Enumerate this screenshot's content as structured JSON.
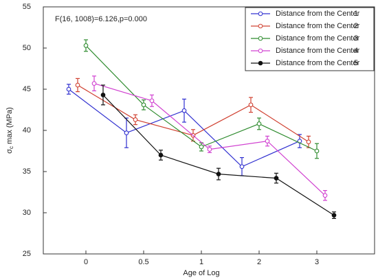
{
  "chart_data": {
    "type": "line",
    "annotation": "F(16, 1008)=6.126,p=0.000",
    "xlabel": "Age of Log",
    "ylabel": {
      "symbol": "σ",
      "subscript": "c",
      "text": " max (MPa)"
    },
    "categories": [
      "0",
      "0.5",
      "1",
      "2",
      "3"
    ],
    "ylim": [
      25,
      55
    ],
    "yticks": [
      25,
      30,
      35,
      40,
      45,
      50,
      55
    ],
    "grid": false,
    "legend": "upper right",
    "series": [
      {
        "name": "Distance from the Center",
        "label": "1",
        "color": "#3030d0",
        "values": [
          45.0,
          39.7,
          42.4,
          35.6,
          38.7
        ],
        "errors": [
          0.6,
          1.8,
          1.4,
          1.1,
          0.8
        ]
      },
      {
        "name": "Distance from the Center",
        "label": "2",
        "color": "#d04030",
        "values": [
          45.5,
          41.3,
          39.4,
          43.1,
          38.6
        ],
        "errors": [
          0.8,
          0.6,
          0.7,
          0.9,
          0.7
        ]
      },
      {
        "name": "Distance from the Center",
        "label": "3",
        "color": "#2e8b2e",
        "values": [
          50.3,
          43.1,
          38.0,
          40.8,
          37.5
        ],
        "errors": [
          0.7,
          0.6,
          0.5,
          0.7,
          0.9
        ]
      },
      {
        "name": "Distance from the Center",
        "label": "4",
        "color": "#d040d0",
        "values": [
          45.7,
          43.6,
          37.7,
          38.7,
          32.1
        ],
        "errors": [
          0.9,
          0.7,
          0.4,
          0.6,
          0.6
        ]
      },
      {
        "name": "Distance from the Center",
        "label": "5",
        "color": "#111111",
        "values": [
          44.3,
          37.0,
          34.7,
          34.2,
          29.7
        ],
        "errors": [
          1.2,
          0.6,
          0.7,
          0.6,
          0.4
        ]
      }
    ]
  }
}
